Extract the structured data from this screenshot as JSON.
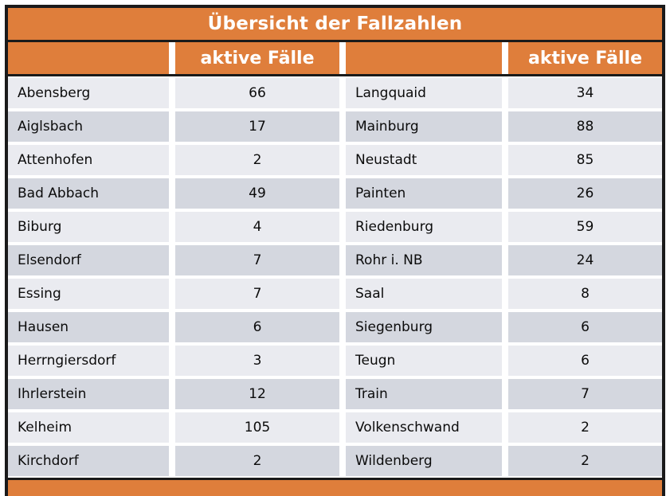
{
  "title": "Übersicht der Fallzahlen",
  "header": {
    "col2_label": "aktive Fälle",
    "col4_label": "aktive Fälle"
  },
  "colors": {
    "header_orange": "#df7e3b",
    "row_light": "#eaebf0",
    "row_dark": "#d4d7df",
    "border_black": "#1a1a1a",
    "header_text": "#ffffff",
    "body_text": "#0b0b0b"
  },
  "rows": [
    {
      "left": {
        "name": "Abensberg",
        "value": "66"
      },
      "right": {
        "name": "Langquaid",
        "value": "34"
      }
    },
    {
      "left": {
        "name": "Aiglsbach",
        "value": "17"
      },
      "right": {
        "name": "Mainburg",
        "value": "88"
      }
    },
    {
      "left": {
        "name": "Attenhofen",
        "value": "2"
      },
      "right": {
        "name": "Neustadt",
        "value": "85"
      }
    },
    {
      "left": {
        "name": "Bad Abbach",
        "value": "49"
      },
      "right": {
        "name": "Painten",
        "value": "26"
      }
    },
    {
      "left": {
        "name": "Biburg",
        "value": "4"
      },
      "right": {
        "name": "Riedenburg",
        "value": "59"
      }
    },
    {
      "left": {
        "name": "Elsendorf",
        "value": "7"
      },
      "right": {
        "name": "Rohr i. NB",
        "value": "24"
      }
    },
    {
      "left": {
        "name": "Essing",
        "value": "7"
      },
      "right": {
        "name": "Saal",
        "value": "8"
      }
    },
    {
      "left": {
        "name": "Hausen",
        "value": "6"
      },
      "right": {
        "name": "Siegenburg",
        "value": "6"
      }
    },
    {
      "left": {
        "name": "Herrngiersdorf",
        "value": "3"
      },
      "right": {
        "name": "Teugn",
        "value": "6"
      }
    },
    {
      "left": {
        "name": "Ihrlerstein",
        "value": "12"
      },
      "right": {
        "name": "Train",
        "value": "7"
      }
    },
    {
      "left": {
        "name": "Kelheim",
        "value": "105"
      },
      "right": {
        "name": "Volkenschwand",
        "value": "2"
      }
    },
    {
      "left": {
        "name": "Kirchdorf",
        "value": "2"
      },
      "right": {
        "name": "Wildenberg",
        "value": "2"
      }
    }
  ]
}
